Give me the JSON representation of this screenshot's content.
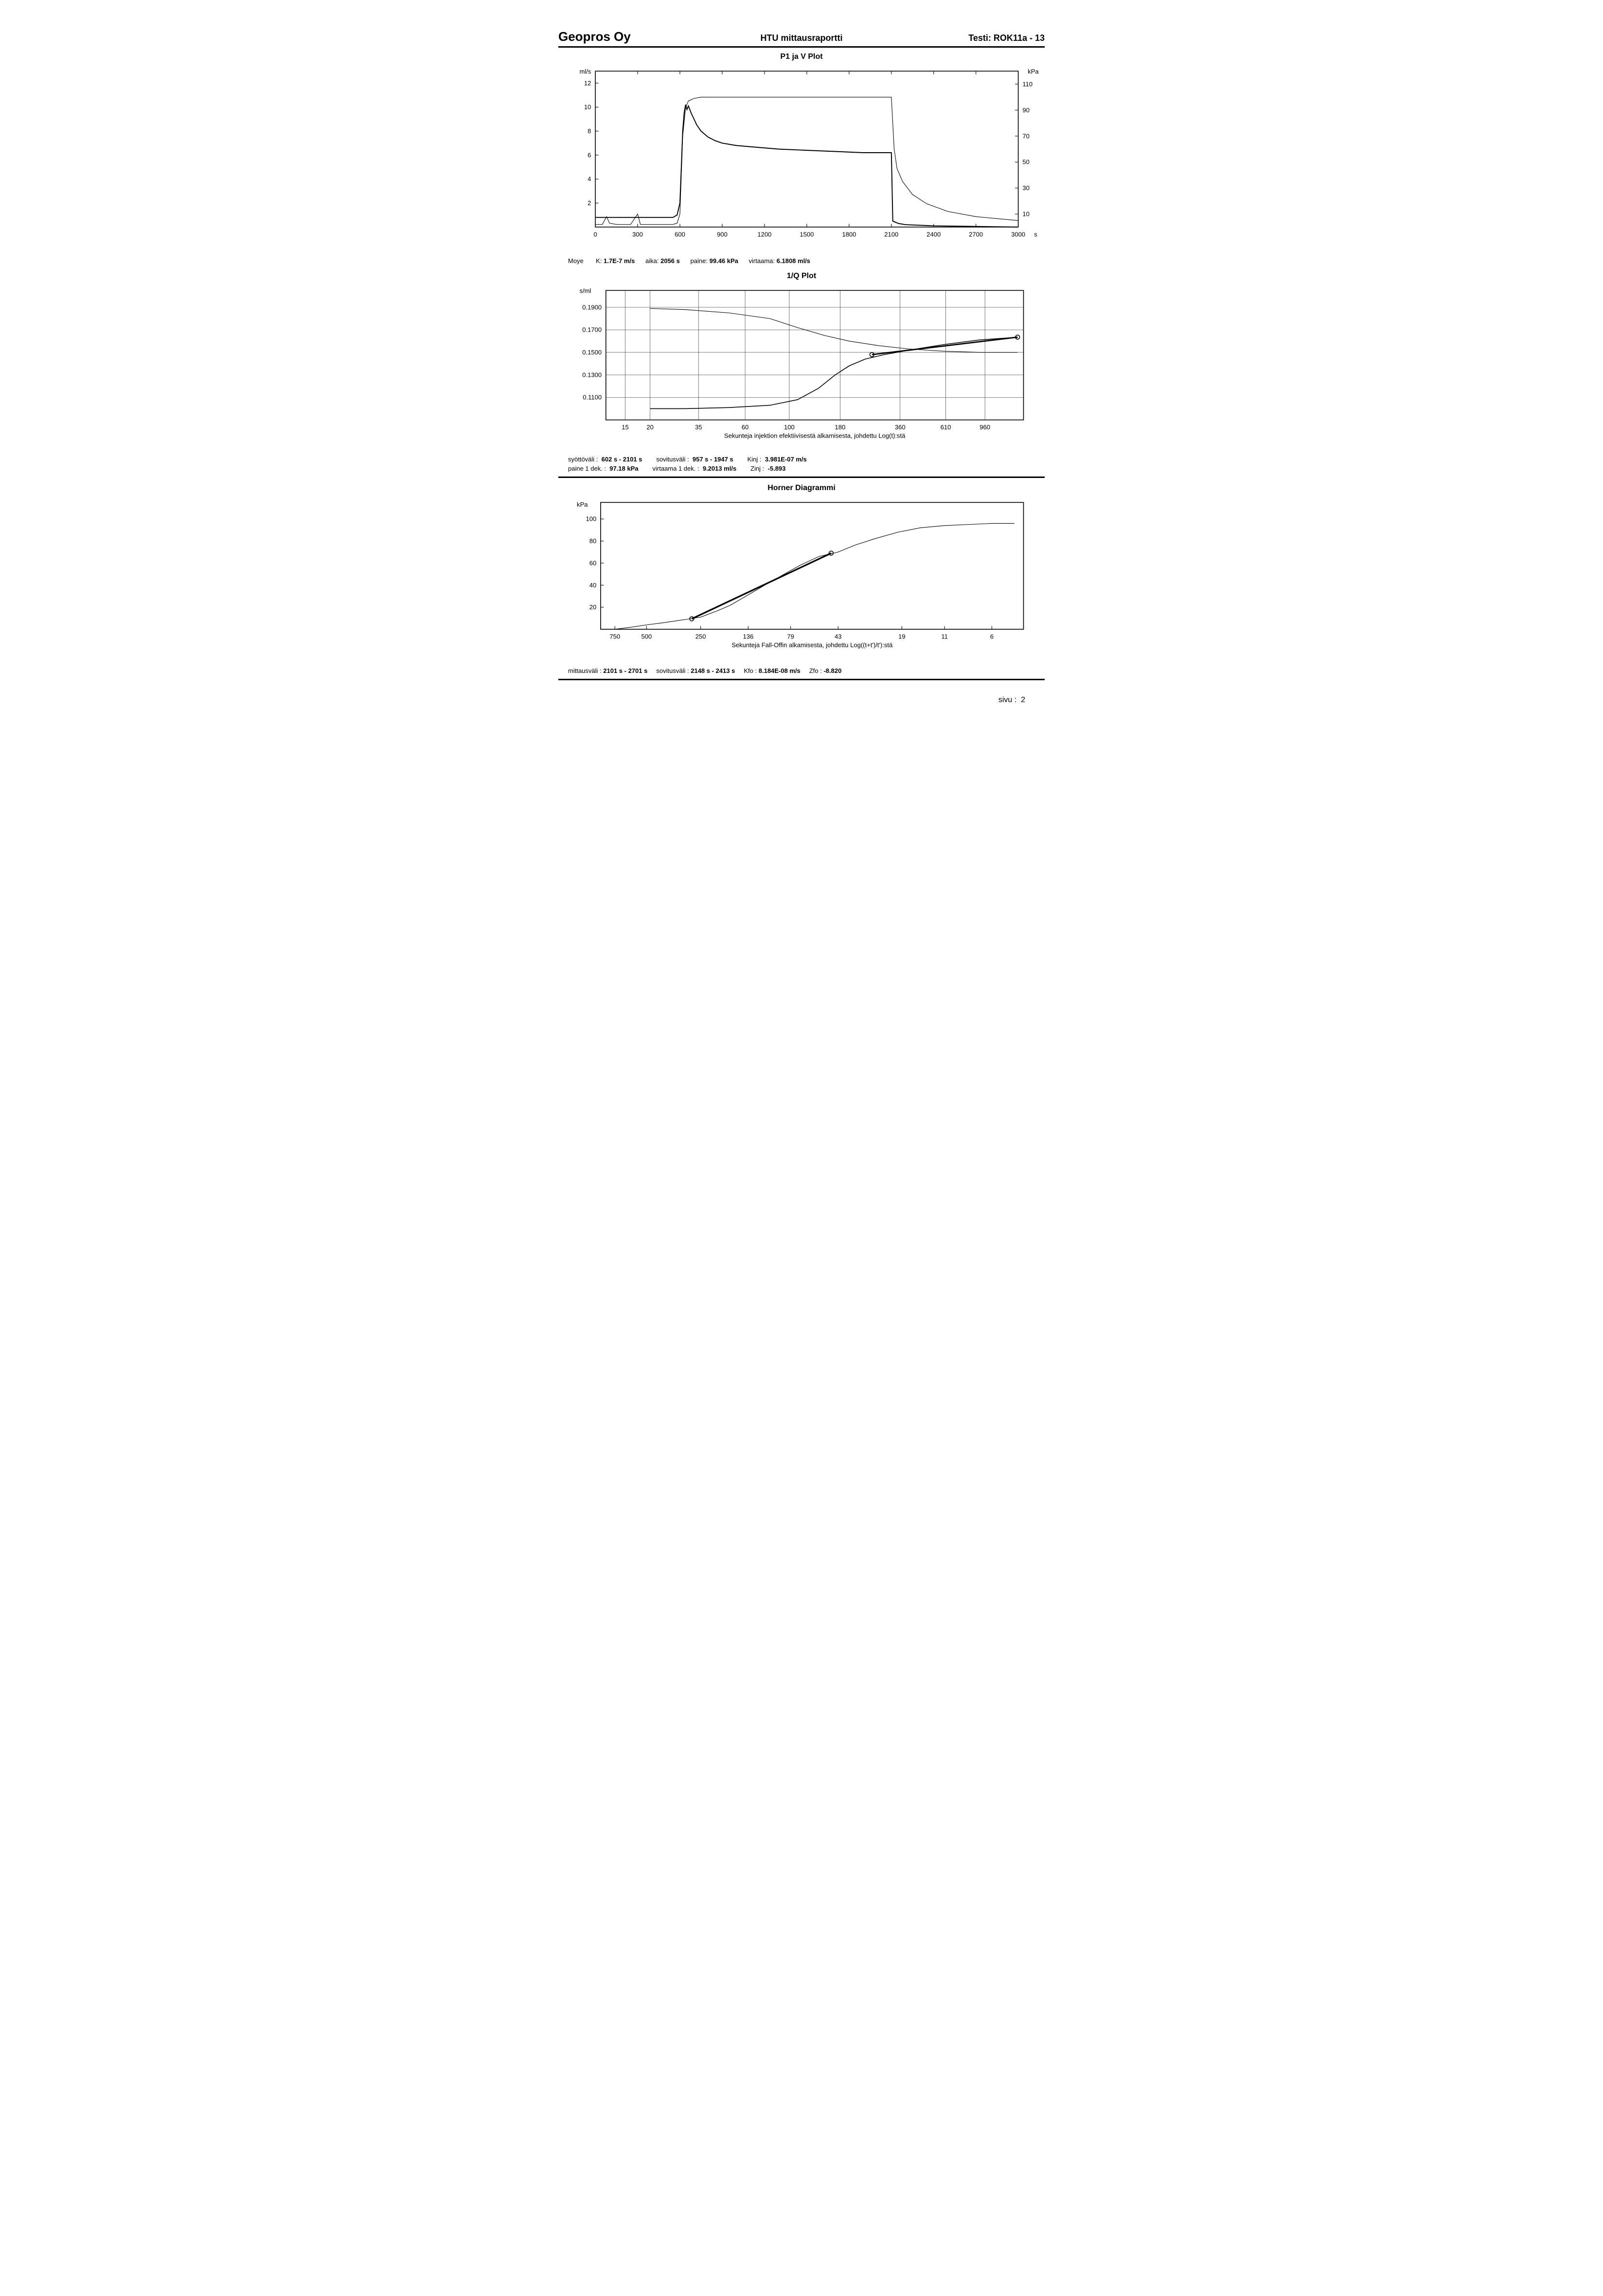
{
  "header": {
    "company": "Geopros Oy",
    "report_title": "HTU mittausraportti",
    "test_label": "Testi: ROK11a - 13"
  },
  "footer": {
    "page_label": "sivu :",
    "page_num": "2"
  },
  "chart1": {
    "title": "P1 ja V Plot",
    "left_unit": "ml/s",
    "right_unit": "kPa",
    "x_unit": "s",
    "x_ticks": [
      0,
      300,
      600,
      900,
      1200,
      1500,
      1800,
      2100,
      2400,
      2700,
      3000
    ],
    "left_ticks": [
      2,
      4,
      6,
      8,
      10,
      12
    ],
    "right_ticks": [
      10,
      30,
      50,
      70,
      90,
      110
    ],
    "left_range": [
      0,
      13
    ],
    "right_range": [
      0,
      120
    ],
    "x_range": [
      0,
      3000
    ],
    "grid_color": "#ffffff",
    "border_color": "#000000",
    "bg_color": "#ffffff",
    "line_color": "#000000",
    "line_width_thin": 1,
    "line_width_thick": 1.8,
    "pressure_series": {
      "comment": "kPa on right axis",
      "points": [
        [
          0,
          2
        ],
        [
          50,
          2
        ],
        [
          80,
          8
        ],
        [
          100,
          3
        ],
        [
          150,
          2
        ],
        [
          200,
          2
        ],
        [
          250,
          2
        ],
        [
          300,
          10
        ],
        [
          320,
          2
        ],
        [
          350,
          2
        ],
        [
          400,
          2
        ],
        [
          500,
          2
        ],
        [
          550,
          2
        ],
        [
          580,
          3
        ],
        [
          600,
          10
        ],
        [
          620,
          70
        ],
        [
          640,
          92
        ],
        [
          660,
          97
        ],
        [
          700,
          99
        ],
        [
          750,
          100
        ],
        [
          800,
          100
        ],
        [
          900,
          100
        ],
        [
          1000,
          100
        ],
        [
          1200,
          100
        ],
        [
          1500,
          100
        ],
        [
          1800,
          100
        ],
        [
          2000,
          100
        ],
        [
          2100,
          100
        ],
        [
          2120,
          60
        ],
        [
          2140,
          45
        ],
        [
          2180,
          35
        ],
        [
          2250,
          25
        ],
        [
          2350,
          18
        ],
        [
          2500,
          12
        ],
        [
          2700,
          8
        ],
        [
          2900,
          6
        ],
        [
          3000,
          5
        ]
      ]
    },
    "flow_series": {
      "comment": "ml/s on left axis",
      "points": [
        [
          0,
          0.8
        ],
        [
          200,
          0.8
        ],
        [
          400,
          0.8
        ],
        [
          550,
          0.8
        ],
        [
          580,
          1
        ],
        [
          600,
          2
        ],
        [
          610,
          5
        ],
        [
          620,
          8
        ],
        [
          630,
          9.5
        ],
        [
          640,
          10.2
        ],
        [
          650,
          9.8
        ],
        [
          660,
          10.1
        ],
        [
          680,
          9.5
        ],
        [
          700,
          9.0
        ],
        [
          720,
          8.5
        ],
        [
          750,
          8.0
        ],
        [
          800,
          7.5
        ],
        [
          850,
          7.2
        ],
        [
          900,
          7.0
        ],
        [
          1000,
          6.8
        ],
        [
          1100,
          6.7
        ],
        [
          1300,
          6.5
        ],
        [
          1500,
          6.4
        ],
        [
          1700,
          6.3
        ],
        [
          1900,
          6.2
        ],
        [
          2050,
          6.2
        ],
        [
          2100,
          6.2
        ],
        [
          2110,
          0.5
        ],
        [
          2150,
          0.3
        ],
        [
          2200,
          0.2
        ],
        [
          2400,
          0.1
        ],
        [
          2700,
          0.05
        ],
        [
          3000,
          0.0
        ]
      ]
    },
    "summary": {
      "items": [
        {
          "lbl": "Moye",
          "val": ""
        },
        {
          "lbl": "K:",
          "val": "1.7E-7 m/s"
        },
        {
          "lbl": "aika:",
          "val": "2056 s"
        },
        {
          "lbl": "paine:",
          "val": "99.46 kPa"
        },
        {
          "lbl": "virtaama:",
          "val": "6.1808 ml/s"
        }
      ]
    }
  },
  "chart2": {
    "title": "1/Q Plot",
    "y_unit": "s/ml",
    "x_label": "Sekunteja injektion efektiivisestä alkamisesta, johdettu Log(t):stä",
    "x_ticks": [
      15,
      20,
      35,
      60,
      100,
      180,
      360,
      610,
      960
    ],
    "y_ticks": [
      0.11,
      0.13,
      0.15,
      0.17,
      0.19
    ],
    "y_range": [
      0.09,
      0.205
    ],
    "x_log_range": [
      12,
      1500
    ],
    "border_color": "#000000",
    "grid_color": "#000000",
    "grid_width": 0.5,
    "bg_color": "#ffffff",
    "line_color": "#000000",
    "upper_series": [
      [
        20,
        0.189
      ],
      [
        30,
        0.188
      ],
      [
        50,
        0.185
      ],
      [
        80,
        0.18
      ],
      [
        110,
        0.172
      ],
      [
        150,
        0.165
      ],
      [
        200,
        0.16
      ],
      [
        280,
        0.156
      ],
      [
        400,
        0.153
      ],
      [
        600,
        0.151
      ],
      [
        900,
        0.15
      ],
      [
        1400,
        0.15
      ]
    ],
    "lower_series": [
      [
        20,
        0.1
      ],
      [
        30,
        0.1
      ],
      [
        50,
        0.101
      ],
      [
        80,
        0.103
      ],
      [
        110,
        0.108
      ],
      [
        140,
        0.118
      ],
      [
        170,
        0.13
      ],
      [
        200,
        0.138
      ],
      [
        240,
        0.144
      ],
      [
        300,
        0.148
      ],
      [
        400,
        0.152
      ],
      [
        600,
        0.157
      ],
      [
        900,
        0.161
      ],
      [
        1300,
        0.163
      ],
      [
        1400,
        0.163
      ]
    ],
    "fit_line": [
      [
        260,
        0.148
      ],
      [
        1400,
        0.1635
      ]
    ],
    "markers": [
      [
        260,
        0.148
      ],
      [
        1400,
        0.1635
      ]
    ],
    "summary_rows": [
      [
        {
          "lbl": "syöttöväli :",
          "val": "602 s - 2101 s"
        },
        {
          "lbl": "sovitusväli :",
          "val": "957 s - 1947 s"
        },
        {
          "lbl": "Kinj :",
          "val": "3.981E-07 m/s"
        }
      ],
      [
        {
          "lbl": "paine 1 dek. :",
          "val": "97.18 kPa"
        },
        {
          "lbl": "virtaama 1 dek. :",
          "val": "9.2013 ml/s"
        },
        {
          "lbl": "Zinj :",
          "val": "-5.893"
        }
      ]
    ]
  },
  "chart3": {
    "title": "Horner Diagrammi",
    "y_unit": "kPa",
    "x_label": "Sekunteja Fall-Offin alkamisesta, johdettu Log((t+t')/t'):stä",
    "x_ticks": [
      750,
      500,
      250,
      136,
      79,
      43,
      19,
      11,
      6
    ],
    "y_ticks": [
      20,
      40,
      60,
      80,
      100
    ],
    "y_range": [
      0,
      115
    ],
    "border_color": "#000000",
    "bg_color": "#ffffff",
    "line_color": "#000000",
    "data_series": [
      [
        750,
        0
      ],
      [
        600,
        2
      ],
      [
        500,
        4
      ],
      [
        400,
        6
      ],
      [
        300,
        9
      ],
      [
        250,
        11
      ],
      [
        200,
        17
      ],
      [
        170,
        22
      ],
      [
        140,
        30
      ],
      [
        110,
        40
      ],
      [
        90,
        48
      ],
      [
        70,
        58
      ],
      [
        55,
        66
      ],
      [
        43,
        70
      ],
      [
        35,
        76
      ],
      [
        27,
        82
      ],
      [
        20,
        88
      ],
      [
        15,
        92
      ],
      [
        11,
        94
      ],
      [
        8,
        95
      ],
      [
        6,
        96
      ],
      [
        4.5,
        96
      ]
    ],
    "fit_line": [
      [
        280,
        9.5
      ],
      [
        47,
        69
      ]
    ],
    "markers": [
      [
        280,
        9.5
      ],
      [
        47,
        69
      ]
    ],
    "summary": [
      {
        "lbl": "mittausväli :",
        "val": "2101 s - 2701 s"
      },
      {
        "lbl": "sovitusväli :",
        "val": "2148 s - 2413 s"
      },
      {
        "lbl": "Kfo :",
        "val": "8.184E-08 m/s"
      },
      {
        "lbl": "Zfo :",
        "val": "-8.820"
      }
    ]
  }
}
